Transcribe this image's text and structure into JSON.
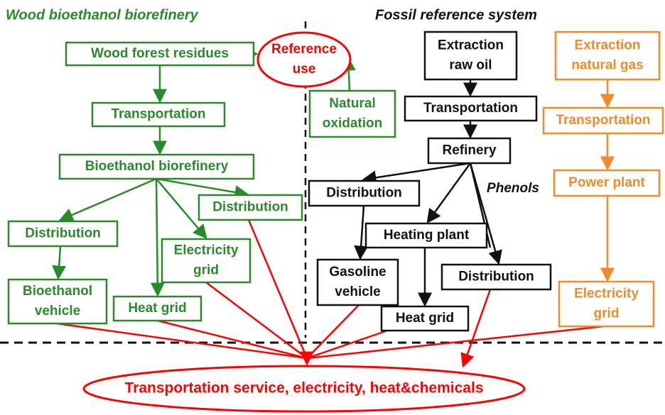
{
  "sections": {
    "wood": "Wood bioethanol biorefinery",
    "fossil": "Fossil reference system"
  },
  "nodes": [
    {
      "lines": [
        "Wood forest residues"
      ]
    },
    {
      "lines": [
        "Reference",
        "use"
      ]
    },
    {
      "lines": [
        "Transportation"
      ]
    },
    {
      "lines": [
        "Bioethanol biorefinery"
      ]
    },
    {
      "lines": [
        "Distribution"
      ]
    },
    {
      "lines": [
        "Distribution"
      ]
    },
    {
      "lines": [
        "Electricity",
        "grid"
      ]
    },
    {
      "lines": [
        "Bioethanol",
        "vehicle"
      ]
    },
    {
      "lines": [
        "Heat grid"
      ]
    },
    {
      "lines": [
        "Natural",
        "oxidation"
      ]
    },
    {
      "lines": [
        "Extraction",
        "raw oil"
      ]
    },
    {
      "lines": [
        "Transportation"
      ]
    },
    {
      "lines": [
        "Refinery"
      ]
    },
    {
      "lines": [
        "Distribution"
      ]
    },
    {
      "lines": [
        "Heating plant"
      ]
    },
    {
      "lines": [
        "Gasoline",
        "vehicle"
      ]
    },
    {
      "lines": [
        "Distribution"
      ]
    },
    {
      "lines": [
        "Heat grid"
      ]
    },
    {
      "lines": [
        "Extraction",
        "natural gas"
      ]
    },
    {
      "lines": [
        "Transportation"
      ]
    },
    {
      "lines": [
        "Power plant"
      ]
    },
    {
      "lines": [
        "Electricity",
        "grid"
      ]
    }
  ],
  "annotation": "Phenols",
  "output": "Transportation service, electricity, heat&chemicals"
}
